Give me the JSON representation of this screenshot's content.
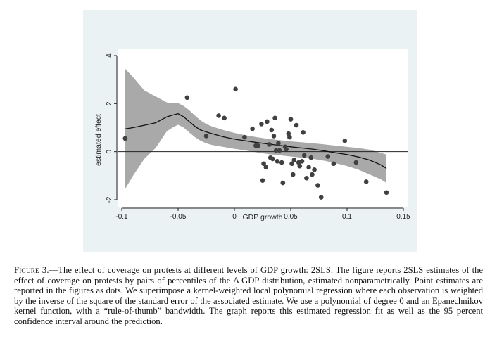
{
  "caption": {
    "label": "Figure 3.",
    "text": "—The effect of coverage on protests at different levels of GDP growth: 2SLS. The figure reports 2SLS estimates of the effect of coverage on protests by pairs of percentiles of the Δ GDP distribution, estimated nonparametrically. Point estimates are reported in the figures as dots. We superimpose a kernel-weighted local polynomial regression where each observation is weighted by the inverse of the square of the standard error of the associated estimate. We use a polynomial of degree 0 and an Epanechnikov kernel function, with a “rule-of-thumb” bandwidth. The graph reports this estimated regression fit as well as the 95 percent confidence interval around the prediction."
  },
  "chart_data": {
    "type": "scatter",
    "xlabel": "GDP growth",
    "ylabel": "estimated effect",
    "xlim": [
      -0.1,
      0.15
    ],
    "ylim": [
      -2,
      4
    ],
    "xticks": [
      -0.1,
      -0.05,
      0,
      0.05,
      0.1,
      0.15
    ],
    "xtick_labels": [
      "-0.1",
      "-0.05",
      "0",
      "0.05",
      "0.1",
      "0.15"
    ],
    "yticks": [
      -2,
      0,
      2,
      4
    ],
    "ytick_labels": [
      "-2",
      "0",
      "2",
      "4"
    ],
    "reference_line_y": 0,
    "colors": {
      "points": "#404040",
      "fit_line": "#111111",
      "ci_band": "#a9a9a9",
      "background": "#eaf2f3",
      "plot_area": "#ffffff"
    },
    "points": [
      [
        -0.097,
        0.55
      ],
      [
        -0.042,
        2.25
      ],
      [
        -0.025,
        0.65
      ],
      [
        -0.014,
        1.5
      ],
      [
        -0.009,
        1.4
      ],
      [
        0.001,
        2.6
      ],
      [
        0.009,
        0.6
      ],
      [
        0.016,
        0.95
      ],
      [
        0.019,
        0.25
      ],
      [
        0.021,
        0.25
      ],
      [
        0.024,
        1.15
      ],
      [
        0.025,
        -1.2
      ],
      [
        0.026,
        -0.5
      ],
      [
        0.028,
        -0.65
      ],
      [
        0.029,
        1.25
      ],
      [
        0.031,
        0.3
      ],
      [
        0.032,
        -0.25
      ],
      [
        0.033,
        0.9
      ],
      [
        0.034,
        -0.3
      ],
      [
        0.035,
        0.65
      ],
      [
        0.036,
        1.4
      ],
      [
        0.037,
        0.05
      ],
      [
        0.038,
        -0.4
      ],
      [
        0.039,
        0.35
      ],
      [
        0.04,
        0.05
      ],
      [
        0.042,
        -0.45
      ],
      [
        0.043,
        -1.3
      ],
      [
        0.045,
        0.2
      ],
      [
        0.046,
        0.1
      ],
      [
        0.048,
        0.75
      ],
      [
        0.049,
        0.6
      ],
      [
        0.05,
        1.35
      ],
      [
        0.051,
        -0.5
      ],
      [
        0.052,
        -0.95
      ],
      [
        0.053,
        -0.35
      ],
      [
        0.055,
        1.1
      ],
      [
        0.057,
        -0.45
      ],
      [
        0.058,
        -0.6
      ],
      [
        0.06,
        -0.4
      ],
      [
        0.061,
        0.8
      ],
      [
        0.062,
        -0.15
      ],
      [
        0.064,
        -1.1
      ],
      [
        0.066,
        -0.65
      ],
      [
        0.068,
        -0.25
      ],
      [
        0.069,
        -0.95
      ],
      [
        0.071,
        -0.75
      ],
      [
        0.074,
        -1.4
      ],
      [
        0.077,
        -1.9
      ],
      [
        0.083,
        -0.2
      ],
      [
        0.088,
        -0.5
      ],
      [
        0.098,
        0.45
      ],
      [
        0.108,
        -0.45
      ],
      [
        0.117,
        -1.25
      ],
      [
        0.135,
        -1.7
      ]
    ],
    "fit_line": {
      "x": [
        -0.097,
        -0.09,
        -0.08,
        -0.07,
        -0.06,
        -0.055,
        -0.05,
        -0.045,
        -0.04,
        -0.035,
        -0.03,
        -0.025,
        -0.02,
        -0.01,
        0,
        0.01,
        0.02,
        0.03,
        0.04,
        0.05,
        0.06,
        0.07,
        0.08,
        0.09,
        0.1,
        0.11,
        0.12,
        0.13,
        0.135
      ],
      "y": [
        0.95,
        1.0,
        1.1,
        1.2,
        1.45,
        1.52,
        1.58,
        1.45,
        1.25,
        1.05,
        0.9,
        0.82,
        0.75,
        0.62,
        0.52,
        0.45,
        0.38,
        0.32,
        0.26,
        0.2,
        0.15,
        0.1,
        0.03,
        -0.05,
        -0.12,
        -0.22,
        -0.35,
        -0.55,
        -0.7
      ]
    },
    "ci_band": {
      "x": [
        -0.097,
        -0.09,
        -0.08,
        -0.07,
        -0.06,
        -0.055,
        -0.05,
        -0.045,
        -0.04,
        -0.035,
        -0.03,
        -0.025,
        -0.02,
        -0.01,
        0,
        0.01,
        0.02,
        0.03,
        0.04,
        0.05,
        0.06,
        0.07,
        0.08,
        0.09,
        0.1,
        0.11,
        0.12,
        0.13,
        0.135
      ],
      "upper": [
        3.45,
        3.1,
        2.55,
        2.3,
        2.05,
        2.02,
        2.02,
        1.9,
        1.72,
        1.5,
        1.3,
        1.15,
        1.05,
        0.9,
        0.78,
        0.68,
        0.6,
        0.53,
        0.48,
        0.43,
        0.39,
        0.35,
        0.3,
        0.25,
        0.2,
        0.15,
        0.08,
        -0.05,
        -0.12
      ],
      "lower": [
        -1.55,
        -1.0,
        -0.3,
        0.15,
        0.85,
        1.0,
        1.12,
        1.0,
        0.8,
        0.6,
        0.45,
        0.35,
        0.28,
        0.2,
        0.12,
        0.05,
        -0.03,
        -0.1,
        -0.15,
        -0.2,
        -0.25,
        -0.3,
        -0.38,
        -0.48,
        -0.6,
        -0.75,
        -0.95,
        -1.15,
        -1.3
      ]
    }
  }
}
